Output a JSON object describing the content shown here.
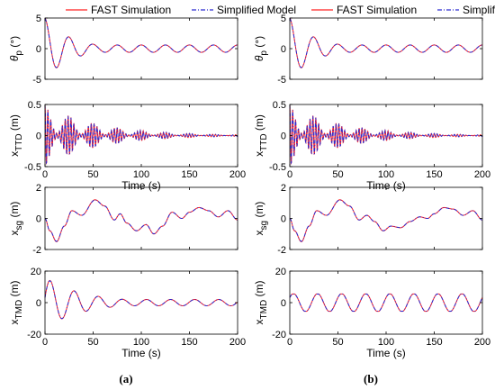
{
  "figure": {
    "captions": [
      "(a)",
      "(b)"
    ],
    "legend": {
      "fast": "FAST Simulation",
      "simplified": "Simplified Model"
    },
    "colors": {
      "fast": "#ff2020",
      "simplified": "#2a2ad0",
      "axis": "#000000",
      "background": "#ffffff"
    }
  },
  "chart_data": [
    {
      "id": "a1",
      "type": "line",
      "ylabel": "θ_p (°)",
      "yticks": [
        -5,
        0,
        5
      ],
      "ylim": [
        -5,
        5
      ],
      "xlim": [
        0,
        200
      ],
      "xticks": [],
      "xlabel": "",
      "series": [
        {
          "name": "FAST Simulation"
        },
        {
          "name": "Simplified Model"
        }
      ],
      "signal": {
        "model": "damped_sine",
        "offset": 0.0,
        "amplitude": 5.0,
        "damping": 0.012,
        "period": 25,
        "phase": 1.5708,
        "tail_amplitude": 0.6,
        "tail_sign": -1
      }
    },
    {
      "id": "b1",
      "type": "line",
      "ylabel": "θ_p (°)",
      "yticks": [
        -5,
        0,
        5
      ],
      "ylim": [
        -5,
        5
      ],
      "xlim": [
        0,
        200
      ],
      "xticks": [],
      "xlabel": "",
      "series": [
        {
          "name": "FAST Simulation"
        },
        {
          "name": "Simplified Model"
        }
      ],
      "signal": {
        "model": "damped_sine",
        "offset": 0.0,
        "amplitude": 5.0,
        "damping": 0.012,
        "period": 25,
        "phase": 1.5708,
        "tail_amplitude": 0.6,
        "tail_sign": -1
      }
    },
    {
      "id": "a2",
      "type": "line",
      "ylabel": "x_TTD (m)",
      "yticks": [
        -0.5,
        0,
        0.5
      ],
      "ylim": [
        -0.5,
        0.5
      ],
      "xlim": [
        0,
        200
      ],
      "xticks": [
        0,
        50,
        100,
        150,
        200
      ],
      "xlabel": "Time (s)",
      "series": [
        {
          "name": "FAST Simulation"
        },
        {
          "name": "Simplified Model"
        }
      ],
      "signal": {
        "model": "beating",
        "amplitude": 0.5,
        "damping": 0.018,
        "fast_period": 3.0,
        "slow_period": 25
      }
    },
    {
      "id": "b2",
      "type": "line",
      "ylabel": "x_TTD (m)",
      "yticks": [
        -0.5,
        0,
        0.5
      ],
      "ylim": [
        -0.5,
        0.5
      ],
      "xlim": [
        0,
        200
      ],
      "xticks": [
        0,
        50,
        100,
        150,
        200
      ],
      "xlabel": "Time (s)",
      "series": [
        {
          "name": "FAST Simulation"
        },
        {
          "name": "Simplified Model"
        }
      ],
      "signal": {
        "model": "beating",
        "amplitude": 0.5,
        "damping": 0.018,
        "fast_period": 3.0,
        "slow_period": 25
      }
    },
    {
      "id": "a3",
      "type": "line",
      "ylabel": "x_sg (m)",
      "yticks": [
        -2,
        0,
        2
      ],
      "ylim": [
        -2,
        2
      ],
      "xlim": [
        0,
        200
      ],
      "xticks": [],
      "xlabel": "",
      "series": [
        {
          "name": "FAST Simulation"
        },
        {
          "name": "Simplified Model"
        }
      ],
      "signal": {
        "model": "points",
        "x": [
          0,
          5,
          12,
          20,
          28,
          38,
          52,
          62,
          72,
          78,
          85,
          95,
          105,
          113,
          122,
          132,
          142,
          150,
          160,
          170,
          180,
          190,
          200
        ],
        "y": [
          0,
          -0.8,
          -1.5,
          -0.5,
          0.5,
          0.2,
          1.2,
          0.8,
          -0.1,
          0.3,
          -0.3,
          -0.8,
          -0.4,
          -1.0,
          -0.5,
          0.4,
          0.0,
          0.4,
          0.7,
          0.5,
          0.1,
          0.5,
          -0.1
        ]
      }
    },
    {
      "id": "b3",
      "type": "line",
      "ylabel": "x_sg (m)",
      "yticks": [
        -2,
        0,
        2
      ],
      "ylim": [
        -2,
        2
      ],
      "xlim": [
        0,
        200
      ],
      "xticks": [],
      "xlabel": "",
      "series": [
        {
          "name": "FAST Simulation"
        },
        {
          "name": "Simplified Model"
        }
      ],
      "signal": {
        "model": "points",
        "x": [
          0,
          5,
          12,
          20,
          28,
          38,
          52,
          62,
          72,
          80,
          88,
          97,
          105,
          115,
          125,
          135,
          143,
          150,
          160,
          170,
          180,
          190,
          200
        ],
        "y": [
          0,
          -0.8,
          -1.5,
          -0.5,
          0.5,
          0.2,
          1.2,
          0.8,
          -0.1,
          0.2,
          -0.2,
          -0.8,
          -0.5,
          -0.6,
          -0.2,
          0.1,
          0.0,
          0.3,
          0.7,
          0.6,
          0.2,
          0.5,
          -0.1
        ]
      }
    },
    {
      "id": "a4",
      "type": "line",
      "ylabel": "x_TMD (m)",
      "yticks": [
        -20,
        0,
        20
      ],
      "ylim": [
        -20,
        20
      ],
      "xlim": [
        0,
        200
      ],
      "xticks": [
        0,
        50,
        100,
        150,
        200
      ],
      "xlabel": "Time (s)",
      "series": [
        {
          "name": "FAST Simulation"
        },
        {
          "name": "Simplified Model"
        }
      ],
      "signal": {
        "model": "beat_decay",
        "amplitude": 16,
        "damping": 0.025,
        "period": 25,
        "offset_phase": -1.57,
        "floor": 2.0
      }
    },
    {
      "id": "b4",
      "type": "line",
      "ylabel": "x_TMD (m)",
      "yticks": [
        -20,
        0,
        20
      ],
      "ylim": [
        -20,
        20
      ],
      "xlim": [
        0,
        200
      ],
      "xticks": [
        0,
        50,
        100,
        150,
        200
      ],
      "xlabel": "Time (s)",
      "series": [
        {
          "name": "FAST Simulation"
        },
        {
          "name": "Simplified Model"
        }
      ],
      "signal": {
        "model": "clipped",
        "amplitude": 5.0,
        "period": 25,
        "phase": 0.6,
        "clip": 5.5
      }
    }
  ]
}
